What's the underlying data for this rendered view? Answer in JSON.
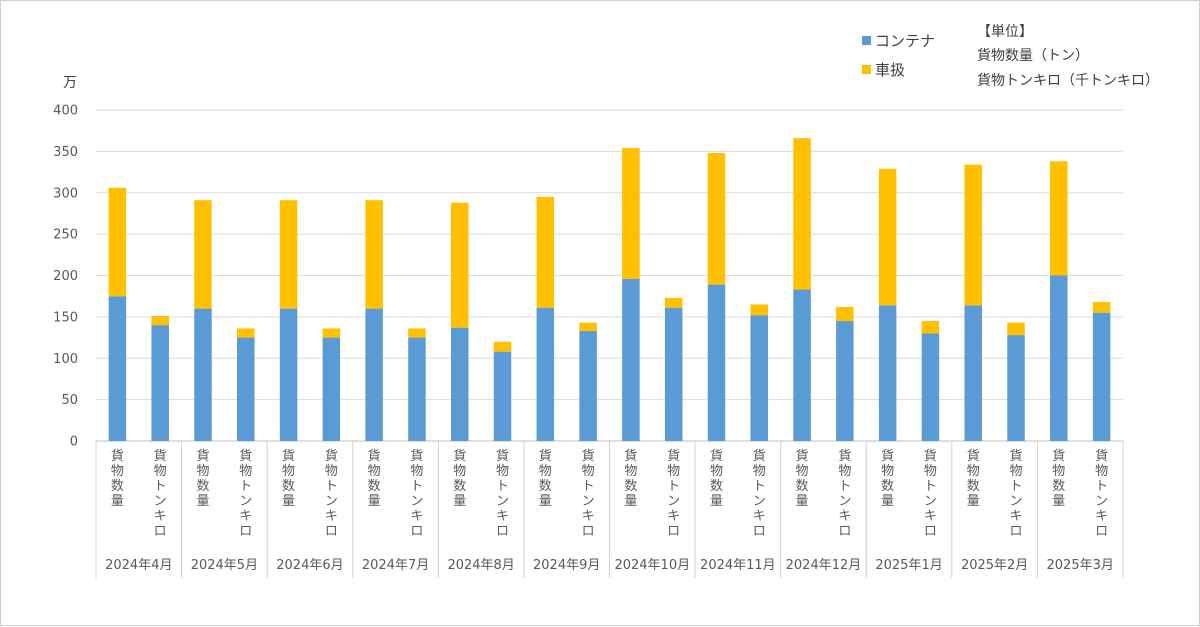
{
  "chart_data": {
    "type": "bar",
    "stacked": true,
    "y_unit": "万",
    "ylim": [
      0,
      400
    ],
    "yticks": [
      0,
      50,
      100,
      150,
      200,
      250,
      300,
      350,
      400
    ],
    "grid": true,
    "legend_position": "top-right",
    "months": [
      "2024年4月",
      "2024年5月",
      "2024年6月",
      "2024年7月",
      "2024年8月",
      "2024年9月",
      "2024年10月",
      "2024年11月",
      "2024年12月",
      "2025年1月",
      "2025年2月",
      "2025年3月"
    ],
    "sub_categories": [
      "貨物数量",
      "貨物トンキロ"
    ],
    "series": [
      {
        "name": "コンテナ",
        "color": "#5B9BD5",
        "values": [
          175,
          140,
          160,
          125,
          160,
          125,
          160,
          125,
          137,
          108,
          161,
          133,
          196,
          161,
          189,
          152,
          183,
          145,
          164,
          130,
          164,
          128,
          200,
          155
        ]
      },
      {
        "name": "車扱",
        "color": "#FFC000",
        "values": [
          131,
          11,
          131,
          11,
          131,
          11,
          131,
          11,
          151,
          12,
          134,
          10,
          158,
          12,
          159,
          13,
          183,
          17,
          165,
          15,
          170,
          15,
          138,
          13
        ]
      }
    ]
  },
  "unit_note": {
    "title": "【単位】",
    "lines": [
      "貨物数量（トン）",
      "貨物トンキロ（千トンキロ）"
    ]
  }
}
